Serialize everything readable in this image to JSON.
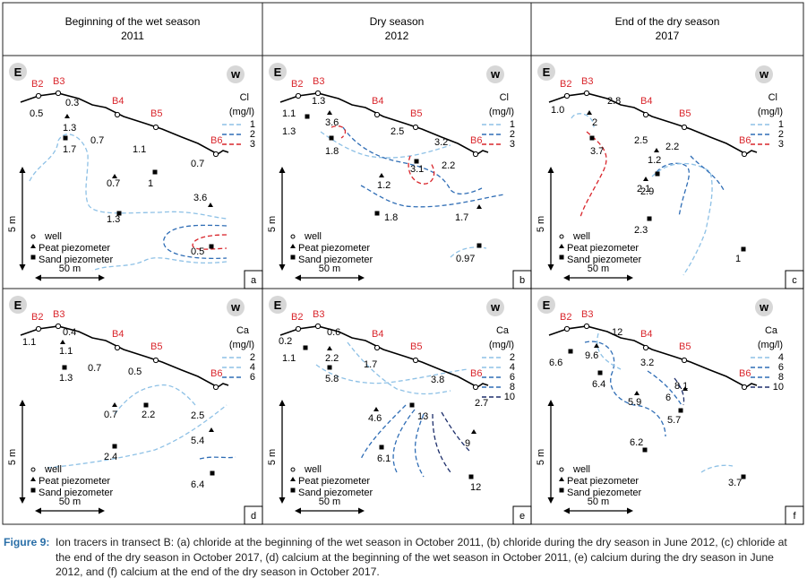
{
  "headers": [
    {
      "title": "Beginning of the wet season",
      "year": "2011"
    },
    {
      "title": "Dry season",
      "year": "2012"
    },
    {
      "title": "End of the dry season",
      "year": "2017"
    }
  ],
  "common": {
    "east": "E",
    "west": "w",
    "wells": [
      "B2",
      "B3",
      "B4",
      "B5",
      "B6"
    ],
    "legend": {
      "well": "well",
      "peat": "Peat piezometer",
      "sand": "Sand piezometer"
    },
    "scale_h": "50 m",
    "scale_v": "5 m",
    "colors": {
      "well_label": "#d9262c",
      "blue_light": "#8ec1e6",
      "blue_mid": "#2f6db5",
      "blue_dark": "#1e2f6b",
      "red": "#d9262c"
    }
  },
  "panels": [
    {
      "id": "a",
      "ion": "Cl",
      "unit": "(mg/l)",
      "legend": [
        {
          "v": "1",
          "c": "blue_light"
        },
        {
          "v": "2",
          "c": "blue_mid"
        },
        {
          "v": "3",
          "c": "red"
        }
      ],
      "well_values": [
        "0.5",
        "0.3",
        "0.7",
        "1.1",
        "0.7"
      ],
      "peat_values": [
        "1.3",
        "0.7",
        "3.6"
      ],
      "sand_values": [
        "1.7",
        "1",
        "1.3",
        "0.5"
      ]
    },
    {
      "id": "b",
      "ion": "Cl",
      "unit": "(mg/l)",
      "legend": [
        {
          "v": "1",
          "c": "blue_light"
        },
        {
          "v": "2",
          "c": "blue_mid"
        },
        {
          "v": "3",
          "c": "red"
        }
      ],
      "well_values": [
        "1.1",
        "1.3",
        "2.5",
        "3.2",
        "2.2"
      ],
      "peat_values": [
        "3.6",
        "1.2",
        "1.7"
      ],
      "sand_values": [
        "1.3",
        "1.8",
        "3.1",
        "1.8",
        "0.97"
      ]
    },
    {
      "id": "c",
      "ion": "Cl",
      "unit": "(mg/l)",
      "legend": [
        {
          "v": "1",
          "c": "blue_light"
        },
        {
          "v": "2",
          "c": "blue_mid"
        },
        {
          "v": "3",
          "c": "red"
        }
      ],
      "well_values": [
        "1.0",
        "2.8",
        "2.5",
        "2.2"
      ],
      "peat_values": [
        "2",
        "1.2",
        "2.1"
      ],
      "sand_values": [
        "3.7",
        "2.9",
        "2.3",
        "1"
      ]
    },
    {
      "id": "d",
      "ion": "Ca",
      "unit": "(mg/l)",
      "legend": [
        {
          "v": "2",
          "c": "blue_light"
        },
        {
          "v": "4",
          "c": "blue_light"
        },
        {
          "v": "6",
          "c": "blue_mid"
        }
      ],
      "well_values": [
        "1.1",
        "0.4",
        "0.7",
        "0.5",
        "2.5"
      ],
      "peat_values": [
        "1.1",
        "0.7",
        "5.4"
      ],
      "sand_values": [
        "1.3",
        "2.2",
        "2.4",
        "6.4"
      ]
    },
    {
      "id": "e",
      "ion": "Ca",
      "unit": "(mg/l)",
      "legend": [
        {
          "v": "2",
          "c": "blue_light"
        },
        {
          "v": "4",
          "c": "blue_light"
        },
        {
          "v": "6",
          "c": "blue_mid"
        },
        {
          "v": "8",
          "c": "blue_mid"
        },
        {
          "v": "10",
          "c": "blue_dark"
        }
      ],
      "well_values": [
        "0.2",
        "0.6",
        "1.7",
        "3.8",
        "2.7"
      ],
      "peat_values": [
        "2.2",
        "4.6",
        "9"
      ],
      "sand_values": [
        "1.1",
        "5.8",
        "13",
        "6.1",
        "12"
      ]
    },
    {
      "id": "f",
      "ion": "Ca",
      "unit": "(mg/l)",
      "legend": [
        {
          "v": "4",
          "c": "blue_light"
        },
        {
          "v": "6",
          "c": "blue_mid"
        },
        {
          "v": "8",
          "c": "blue_mid"
        },
        {
          "v": "10",
          "c": "blue_dark"
        }
      ],
      "well_values": [
        "12",
        "3.2",
        "8.1"
      ],
      "peat_values": [
        "9.6",
        "5.9",
        "6"
      ],
      "sand_values": [
        "6.6",
        "6.4",
        "5.7",
        "6.2",
        "3.7"
      ]
    }
  ],
  "caption": {
    "label": "Figure 9:",
    "text": "Ion tracers in transect B: (a) chloride at the beginning of the wet season in October 2011, (b) chloride during the dry season in June 2012, (c) chloride at the end of the dry season in October 2017, (d) calcium at the beginning of the wet season in October 2011, (e) calcium during the dry season in June 2012, and (f) calcium at the end of the dry season in October 2017."
  }
}
